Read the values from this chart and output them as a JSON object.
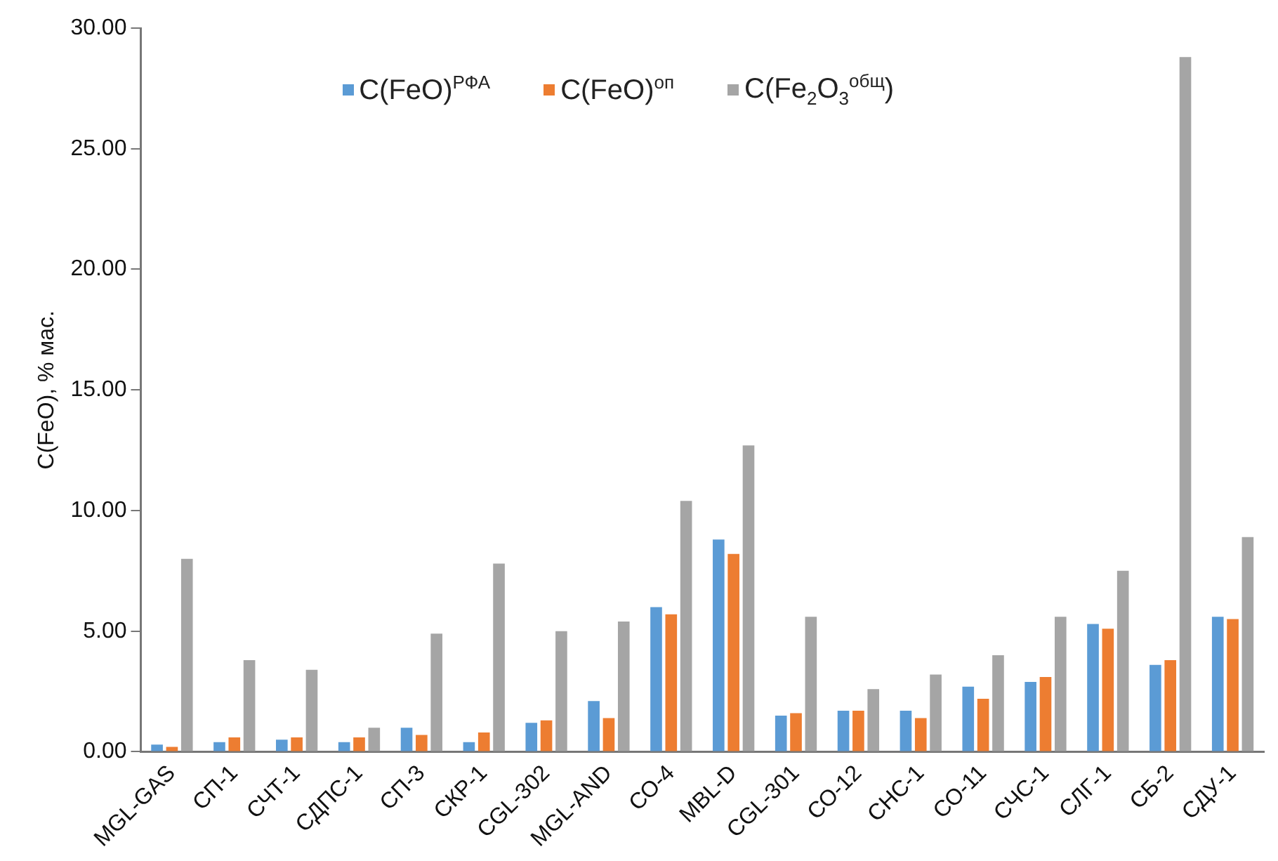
{
  "chart_data": {
    "type": "bar",
    "ylabel": "C(FeO), % мас.",
    "categories": [
      "MGL-GAS",
      "СП-1",
      "СЧТ-1",
      "СДПС-1",
      "СП-3",
      "СКР-1",
      "CGL-302",
      "MGL-AND",
      "СО-4",
      "MBL-D",
      "CGL-301",
      "СО-12",
      "СНС-1",
      "СО-11",
      "СЧС-1",
      "СЛГ-1",
      "СБ-2",
      "СДУ-1"
    ],
    "series": [
      {
        "name": "C(FeO)$^{РФА}$",
        "color": "#5b9bd5",
        "values": [
          0.3,
          0.4,
          0.5,
          0.4,
          1.0,
          0.4,
          1.2,
          2.1,
          6.0,
          8.8,
          1.5,
          1.7,
          1.7,
          2.7,
          2.9,
          5.3,
          3.6,
          5.6
        ]
      },
      {
        "name": "C(FeO)$^{оп}$",
        "color": "#ed7d31",
        "values": [
          0.2,
          0.6,
          0.6,
          0.6,
          0.7,
          0.8,
          1.3,
          1.4,
          5.7,
          8.2,
          1.6,
          1.7,
          1.4,
          2.2,
          3.1,
          5.1,
          3.8,
          5.5
        ]
      },
      {
        "name": "C(Fe$_{2}$O$_{3}$$^{общ}$)",
        "color": "#a5a5a5",
        "values": [
          8.0,
          3.8,
          3.4,
          1.0,
          4.9,
          7.8,
          5.0,
          5.4,
          10.4,
          12.7,
          5.6,
          2.6,
          3.2,
          4.0,
          5.6,
          7.5,
          28.8,
          8.9
        ]
      }
    ],
    "ylim": [
      0,
      30
    ],
    "yticks": [
      {
        "value": 0,
        "label": "0.00"
      },
      {
        "value": 5,
        "label": "5.00"
      },
      {
        "value": 10,
        "label": "10.00"
      },
      {
        "value": 15,
        "label": "15.00"
      },
      {
        "value": 20,
        "label": "20.00"
      },
      {
        "value": 25,
        "label": "25.00"
      },
      {
        "value": 30,
        "label": "30.00"
      }
    ],
    "grid": false,
    "legend": "top"
  }
}
